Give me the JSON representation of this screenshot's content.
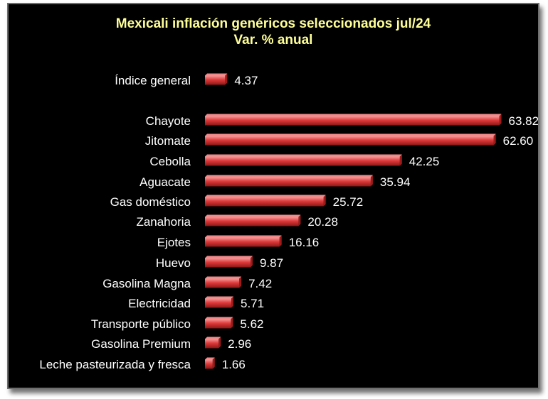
{
  "chart_data": {
    "type": "bar",
    "orientation": "horizontal",
    "title": "Mexicali inflación genéricos seleccionados jul/24",
    "subtitle": "Var. % anual",
    "categories": [
      "Índice general",
      "Chayote",
      "Jitomate",
      "Cebolla",
      "Aguacate",
      "Gas doméstico",
      "Zanahoria",
      "Ejotes",
      "Huevo",
      "Gasolina Magna",
      "Electricidad",
      "Transporte público",
      "Gasolina Premium",
      "Leche pasteurizada y fresca"
    ],
    "values": [
      4.37,
      63.82,
      62.6,
      42.25,
      35.94,
      25.72,
      20.28,
      16.16,
      9.87,
      7.42,
      5.71,
      5.62,
      2.96,
      1.66
    ],
    "value_labels": [
      "4.37",
      "63.82",
      "62.60",
      "42.25",
      "35.94",
      "25.72",
      "20.28",
      "16.16",
      "9.87",
      "7.42",
      "5.71",
      "5.62",
      "2.96",
      "1.66"
    ],
    "xlim": [
      0,
      64
    ],
    "grid": false,
    "legend": "none",
    "colors": {
      "bar": "#e03a3a",
      "bar_dark": "#9c1c1c",
      "bar_light": "#f08a8a",
      "background": "#000000",
      "title": "#ffff99",
      "labels": "#ffffff"
    }
  }
}
